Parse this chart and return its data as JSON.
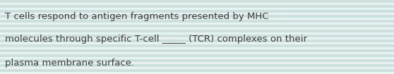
{
  "text_lines": [
    "T cells respond to antigen fragments presented by MHC",
    "molecules through specific T-cell _____ (TCR) complexes on their",
    "plasma membrane surface."
  ],
  "background_color": "#daeae8",
  "stripe_light": "#e8f2f0",
  "stripe_dark": "#cde0dd",
  "text_color": "#3a3a3a",
  "font_size": 9.5,
  "fig_width": 5.58,
  "fig_height": 1.05,
  "dpi": 100
}
